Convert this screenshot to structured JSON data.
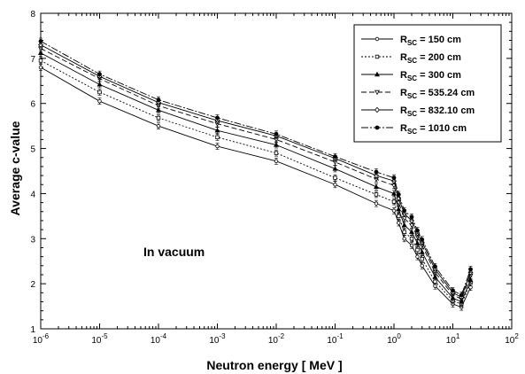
{
  "chart_data": {
    "type": "line",
    "title": "",
    "xlabel": "Neutron energy   [  MeV  ]",
    "ylabel": "Average c-value",
    "x_scale": "log",
    "xlim": [
      1e-06,
      100
    ],
    "ylim": [
      1,
      8
    ],
    "grid": false,
    "legend_position": "top-right",
    "annotation": "In vacuum",
    "x_ticks": [
      {
        "base": "10",
        "exp": "-6",
        "value": 1e-06
      },
      {
        "base": "10",
        "exp": "-5",
        "value": 1e-05
      },
      {
        "base": "10",
        "exp": "-4",
        "value": 0.0001
      },
      {
        "base": "10",
        "exp": "-3",
        "value": 0.001
      },
      {
        "base": "10",
        "exp": "-2",
        "value": 0.01
      },
      {
        "base": "10",
        "exp": "-1",
        "value": 0.1
      },
      {
        "base": "10",
        "exp": "0",
        "value": 1
      },
      {
        "base": "10",
        "exp": "1",
        "value": 10
      },
      {
        "base": "10",
        "exp": "2",
        "value": 100
      }
    ],
    "y_ticks": [
      "1",
      "2",
      "3",
      "4",
      "5",
      "6",
      "7",
      "8"
    ],
    "x": [
      1e-06,
      1e-05,
      0.0001,
      0.001,
      0.01,
      0.1,
      0.5,
      1,
      1.2,
      1.5,
      2,
      2.5,
      3,
      5,
      10,
      14,
      20
    ],
    "series": [
      {
        "name_main": "R",
        "name_sub": "SC",
        "name_rest": " = 150 cm",
        "marker": "dot",
        "dash": "",
        "values": [
          6.8,
          6.05,
          5.5,
          5.05,
          4.72,
          4.2,
          3.78,
          3.62,
          3.35,
          3.0,
          2.85,
          2.6,
          2.4,
          1.95,
          1.55,
          1.48,
          1.92
        ]
      },
      {
        "name_main": "R",
        "name_sub": "SC",
        "name_rest": " = 200 cm",
        "marker": "square",
        "dash": "2,2",
        "values": [
          6.95,
          6.25,
          5.68,
          5.25,
          4.9,
          4.35,
          3.98,
          3.82,
          3.5,
          3.15,
          3.0,
          2.75,
          2.55,
          2.05,
          1.62,
          1.55,
          2.02
        ]
      },
      {
        "name_main": "R",
        "name_sub": "SC",
        "name_rest": " = 300 cm",
        "marker": "triangle",
        "dash": "",
        "values": [
          7.12,
          6.42,
          5.85,
          5.4,
          5.08,
          4.55,
          4.15,
          4.0,
          3.65,
          3.3,
          3.15,
          2.9,
          2.7,
          2.15,
          1.68,
          1.6,
          2.08
        ]
      },
      {
        "name_main": "R",
        "name_sub": "SC",
        "name_rest": " = 535.24 cm",
        "marker": "triangle-down",
        "dash": "6,3",
        "values": [
          7.22,
          6.55,
          5.95,
          5.55,
          5.2,
          4.7,
          4.32,
          4.18,
          3.8,
          3.45,
          3.3,
          3.05,
          2.85,
          2.25,
          1.75,
          1.66,
          2.18
        ]
      },
      {
        "name_main": "R",
        "name_sub": "SC",
        "name_rest": " = 832.10 cm",
        "marker": "diamond",
        "dash": "",
        "values": [
          7.3,
          6.6,
          6.02,
          5.62,
          5.28,
          4.78,
          4.4,
          4.28,
          3.9,
          3.55,
          3.4,
          3.12,
          2.92,
          2.32,
          1.8,
          1.7,
          2.25
        ]
      },
      {
        "name_main": "R",
        "name_sub": "SC",
        "name_rest": " = 1010 cm",
        "marker": "dot-filled",
        "dash": "8,2,2,2",
        "values": [
          7.38,
          6.65,
          6.08,
          5.68,
          5.32,
          4.82,
          4.48,
          4.35,
          3.98,
          3.62,
          3.48,
          3.18,
          2.98,
          2.38,
          1.85,
          1.75,
          2.32
        ]
      }
    ]
  }
}
